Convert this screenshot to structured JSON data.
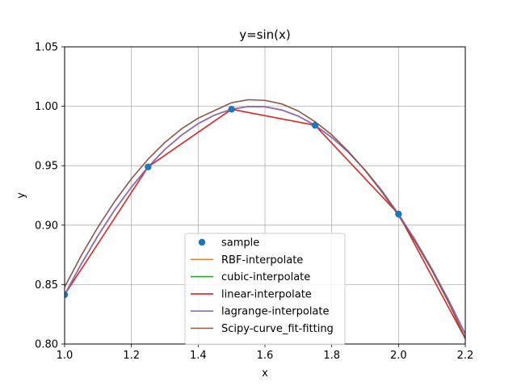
{
  "chart_data": {
    "type": "line",
    "title": "y=sin(x)",
    "xlabel": "x",
    "ylabel": "y",
    "xlim": [
      1.0,
      2.2
    ],
    "ylim": [
      0.8,
      1.05
    ],
    "grid": true,
    "legend_position": "lower-center",
    "x_ticks": [
      1.0,
      1.2,
      1.4,
      1.6,
      1.8,
      2.0,
      2.2
    ],
    "x_tick_labels": [
      "1.0",
      "1.2",
      "1.4",
      "1.6",
      "1.8",
      "2.0",
      "2.2"
    ],
    "y_ticks": [
      0.8,
      0.85,
      0.9,
      0.95,
      1.0,
      1.05
    ],
    "y_tick_labels": [
      "0.80",
      "0.85",
      "0.90",
      "0.95",
      "1.00",
      "1.05"
    ],
    "series": [
      {
        "name": "sample",
        "kind": "markers",
        "color": "#1f77b4",
        "x": [
          1.0,
          1.25,
          1.5,
          1.75,
          2.0
        ],
        "y": [
          0.8415,
          0.949,
          0.9975,
          0.984,
          0.9093
        ]
      },
      {
        "name": "RBF-interpolate",
        "kind": "curve",
        "color": "#ff7f0e",
        "x": [
          1.0,
          1.05,
          1.1,
          1.15,
          1.2,
          1.25,
          1.3,
          1.35,
          1.4,
          1.45,
          1.5,
          1.55,
          1.6,
          1.65,
          1.7,
          1.75,
          1.8,
          1.85,
          1.9,
          1.95,
          2.0,
          2.05,
          2.1,
          2.15,
          2.2
        ],
        "y": [
          0.8415,
          0.8674,
          0.8912,
          0.9128,
          0.932,
          0.949,
          0.9636,
          0.9757,
          0.9854,
          0.9927,
          0.9975,
          0.9998,
          0.9996,
          0.9969,
          0.9917,
          0.984,
          0.9738,
          0.9613,
          0.9463,
          0.929,
          0.9093,
          0.8874,
          0.8632,
          0.8369,
          0.8085
        ]
      },
      {
        "name": "cubic-interpolate",
        "kind": "curve",
        "color": "#2ca02c",
        "x": [
          1.0,
          1.05,
          1.1,
          1.15,
          1.2,
          1.25,
          1.3,
          1.35,
          1.4,
          1.45,
          1.5,
          1.55,
          1.6,
          1.65,
          1.7,
          1.75,
          1.8,
          1.85,
          1.9,
          1.95,
          2.0,
          2.05,
          2.1,
          2.15,
          2.2
        ],
        "y": [
          0.8415,
          0.8674,
          0.8912,
          0.9128,
          0.932,
          0.949,
          0.9636,
          0.9757,
          0.9854,
          0.9927,
          0.9975,
          0.9998,
          0.9996,
          0.9969,
          0.9917,
          0.984,
          0.9738,
          0.9613,
          0.9463,
          0.929,
          0.9093,
          0.8874,
          0.8632,
          0.8369,
          0.8085
        ]
      },
      {
        "name": "linear-interpolate",
        "kind": "curve",
        "color": "#d62728",
        "x": [
          1.0,
          1.25,
          1.5,
          1.75,
          2.0,
          2.2
        ],
        "y": [
          0.8415,
          0.949,
          0.9975,
          0.984,
          0.9093,
          0.8045
        ]
      },
      {
        "name": "lagrange-interpolate",
        "kind": "curve",
        "color": "#9467bd",
        "x": [
          1.0,
          1.05,
          1.1,
          1.15,
          1.2,
          1.25,
          1.3,
          1.35,
          1.4,
          1.45,
          1.5,
          1.55,
          1.6,
          1.65,
          1.7,
          1.75,
          1.8,
          1.85,
          1.9,
          1.95,
          2.0,
          2.05,
          2.1,
          2.15,
          2.2
        ],
        "y": [
          0.8415,
          0.8674,
          0.8912,
          0.9128,
          0.932,
          0.949,
          0.9636,
          0.9757,
          0.9854,
          0.9927,
          0.9975,
          0.9998,
          0.9996,
          0.9969,
          0.9917,
          0.984,
          0.9738,
          0.9613,
          0.9463,
          0.929,
          0.9093,
          0.8874,
          0.8632,
          0.8369,
          0.8085
        ]
      },
      {
        "name": "Scipy-curve_fit-fitting",
        "kind": "curve",
        "color": "#8c564b",
        "x": [
          1.0,
          1.05,
          1.1,
          1.15,
          1.2,
          1.25,
          1.3,
          1.35,
          1.4,
          1.45,
          1.5,
          1.55,
          1.6,
          1.65,
          1.7,
          1.75,
          1.8,
          1.85,
          1.9,
          1.95,
          2.0,
          2.05,
          2.1,
          2.15,
          2.2
        ],
        "y": [
          0.848,
          0.8745,
          0.8985,
          0.92,
          0.939,
          0.9555,
          0.9695,
          0.981,
          0.99,
          0.9965,
          1.003,
          1.0055,
          1.005,
          1.002,
          0.996,
          0.987,
          0.976,
          0.962,
          0.946,
          0.928,
          0.908,
          0.886,
          0.862,
          0.835,
          0.805
        ]
      }
    ]
  }
}
